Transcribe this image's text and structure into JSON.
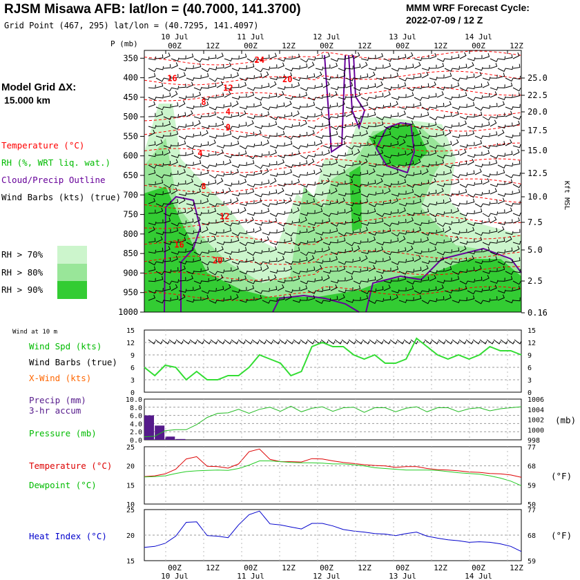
{
  "header": {
    "title": "RJSM Misawa AFB:  lat/lon = (40.7000, 141.3700)",
    "subtitle": "Grid Point (467, 295) lat/lon = (40.7295, 141.4097)",
    "cycle_label": "MMM WRF Forecast Cycle:",
    "cycle_value": "2022-07-09 / 12  Z"
  },
  "legend": {
    "grid_label": "Model Grid ΔX:",
    "grid_value": "15.000 km",
    "temperature": "Temperature (°C)",
    "rh": "RH (%, WRT liq. wat.)",
    "cloud": "Cloud/Precip Outline",
    "wind": "Wind Barbs (kts) (true)",
    "rh70": "RH > 70%",
    "rh80": "RH > 80%",
    "rh90": "RH > 90%",
    "wind10m": "Wind at 10 m",
    "wind_spd": "Wind Spd (kts)",
    "wind_barbs": "Wind Barbs (true)",
    "x_wind": "X-Wind (kts)",
    "precip": "Precip (mm)",
    "precip2": "3-hr accum",
    "pressure": "Pressure (mb)",
    "temp2": "Temperature (°C)",
    "dewpoint": "Dewpoint (°C)",
    "heat_index": "Heat Index (°C)",
    "kft": "Kft MSL",
    "mb": "(mb)",
    "degF": "(°F)",
    "degF2": "(°F)",
    "p_axis": "P (mb)"
  },
  "colors": {
    "temperature": "#ff0000",
    "rh": "#00cc00",
    "cloud": "#660099",
    "rh70": "#ccf5cc",
    "rh80": "#99e699",
    "rh90": "#33cc33",
    "heat_index": "#0000cc",
    "precip_bar": "#551a8b"
  },
  "chart_data": [
    {
      "type": "heatmap",
      "name": "cross-section",
      "time_top_labels": [
        "00Z",
        "12Z",
        "00Z",
        "12Z",
        "00Z",
        "12Z",
        "00Z",
        "12Z",
        "00Z",
        "12Z"
      ],
      "date_top_labels": [
        "10 Jul",
        "11 Jul",
        "12 Jul",
        "13 Jul",
        "14 Jul"
      ],
      "pressure_levels": [
        350,
        400,
        450,
        500,
        550,
        600,
        650,
        700,
        750,
        800,
        850,
        900,
        950,
        1000
      ],
      "height_ticks": [
        "25.0",
        "22.5",
        "20.0",
        "17.5",
        "15.0",
        "12.5",
        "10.0",
        "7.5",
        "5.0",
        "2.5",
        "0.16"
      ],
      "temp_labels": [
        {
          "t": "24",
          "hour": 33,
          "p": 355
        },
        {
          "t": "20",
          "hour": 41,
          "p": 404
        },
        {
          "t": "16",
          "hour": 8,
          "p": 402
        },
        {
          "t": "12",
          "hour": 24,
          "p": 426
        },
        {
          "t": "8",
          "hour": 17,
          "p": 463
        },
        {
          "t": "4",
          "hour": 24,
          "p": 487
        },
        {
          "t": "0",
          "hour": 24,
          "p": 527
        },
        {
          "t": "4",
          "hour": 16,
          "p": 593
        },
        {
          "t": "8",
          "hour": 17,
          "p": 678
        },
        {
          "t": "12",
          "hour": 23,
          "p": 755
        },
        {
          "t": "16",
          "hour": 10,
          "p": 828
        },
        {
          "t": "20",
          "hour": 21,
          "p": 868
        }
      ]
    },
    {
      "type": "line",
      "name": "wind",
      "x_hours": [
        0,
        3,
        6,
        9,
        12,
        15,
        18,
        21,
        24,
        27,
        30,
        33,
        36,
        39,
        42,
        45,
        48,
        51,
        54,
        57,
        60,
        63,
        66,
        69,
        72,
        75,
        78,
        81,
        84,
        87,
        90,
        93,
        96,
        99,
        102,
        105,
        108
      ],
      "series": [
        {
          "name": "Wind Spd (kts)",
          "values": [
            6,
            4,
            6.5,
            6,
            3,
            5,
            3,
            3,
            4,
            4,
            6,
            9,
            8,
            7,
            4,
            5,
            11,
            12,
            11,
            11,
            9,
            8,
            9,
            7,
            7,
            8,
            13,
            11,
            9,
            8,
            9,
            8,
            9,
            11,
            10,
            10,
            9
          ]
        }
      ],
      "ylim": [
        0,
        15
      ],
      "yticks": [
        "15",
        "12",
        "9",
        "6",
        "3",
        "0"
      ]
    },
    {
      "type": "bar",
      "name": "precip",
      "x_hours": [
        0,
        3,
        6,
        9
      ],
      "values": [
        6.0,
        3.5,
        0.8,
        0.2
      ],
      "ylim": [
        0,
        10
      ],
      "yticks": [
        "10.0",
        "8.0",
        "6.0",
        "4.0",
        "2.0",
        "0.0"
      ]
    },
    {
      "type": "line",
      "name": "pressure",
      "x_hours": [
        0,
        3,
        6,
        9,
        12,
        15,
        18,
        21,
        24,
        27,
        30,
        33,
        36,
        39,
        42,
        45,
        48,
        51,
        54,
        57,
        60,
        63,
        66,
        69,
        72,
        75,
        78,
        81,
        84,
        87,
        90,
        93,
        96,
        99,
        102,
        105,
        108
      ],
      "series": [
        {
          "name": "Pressure (mb)",
          "values": [
            998.6,
            998.7,
            999.8,
            1000.0,
            1000.0,
            1001.0,
            1002.4,
            1003.2,
            1003.3,
            1004.0,
            1003.2,
            1004.0,
            1004.4,
            1003.6,
            1004.6,
            1003.5,
            1004.2,
            1004.5,
            1003.6,
            1004.3,
            1004.4,
            1003.4,
            1004.3,
            1004.3,
            1003.5,
            1004.2,
            1004.5,
            1003.5,
            1004.3,
            1004.3,
            1003.5,
            1004.1,
            1004.3,
            1003.7,
            1004.1,
            1004.3,
            1004.5
          ]
        }
      ],
      "ylim": [
        998,
        1006
      ],
      "yticks": [
        "1006",
        "1004",
        "1002",
        "1000",
        "998"
      ]
    },
    {
      "type": "line",
      "name": "temperature",
      "x_hours": [
        0,
        3,
        6,
        9,
        12,
        15,
        18,
        21,
        24,
        27,
        30,
        33,
        36,
        39,
        42,
        45,
        48,
        51,
        54,
        57,
        60,
        63,
        66,
        69,
        72,
        75,
        78,
        81,
        84,
        87,
        90,
        93,
        96,
        99,
        102,
        105,
        108
      ],
      "series": [
        {
          "name": "Temperature (°C)",
          "values": [
            17.2,
            17.4,
            17.9,
            19.1,
            21.8,
            22.4,
            19.9,
            19.8,
            19.4,
            20.5,
            23.7,
            24.4,
            21.7,
            21.1,
            21.1,
            21.0,
            21.9,
            21.8,
            21.3,
            20.9,
            20.6,
            20.3,
            20.1,
            20.0,
            19.6,
            19.8,
            19.8,
            19.3,
            19.0,
            18.9,
            18.7,
            18.4,
            18.3,
            18.0,
            17.9,
            17.6,
            17.0
          ]
        },
        {
          "name": "Dewpoint (°C)",
          "values": [
            17.1,
            17.2,
            17.4,
            18.0,
            18.5,
            18.7,
            18.8,
            18.9,
            18.8,
            19.3,
            20.2,
            21.3,
            21.3,
            21.1,
            20.9,
            20.8,
            20.8,
            20.7,
            20.5,
            20.5,
            20.3,
            20.0,
            19.5,
            19.3,
            19.1,
            18.9,
            18.9,
            18.9,
            18.8,
            18.5,
            18.2,
            18.0,
            17.8,
            17.4,
            16.8,
            16.0,
            14.8
          ]
        }
      ],
      "ylim": [
        10,
        25
      ],
      "yticks": [
        "25",
        "20",
        "15",
        "10"
      ],
      "yticks_right": [
        "77",
        "68",
        "59",
        "50"
      ]
    },
    {
      "type": "line",
      "name": "heat-index",
      "x_hours": [
        0,
        3,
        6,
        9,
        12,
        15,
        18,
        21,
        24,
        27,
        30,
        33,
        36,
        39,
        42,
        45,
        48,
        51,
        54,
        57,
        60,
        63,
        66,
        69,
        72,
        75,
        78,
        81,
        84,
        87,
        90,
        93,
        96,
        99,
        102,
        105,
        108
      ],
      "series": [
        {
          "name": "Heat Index (°C)",
          "values": [
            17.6,
            17.8,
            18.4,
            19.8,
            22.5,
            22.6,
            19.9,
            19.8,
            19.5,
            22.0,
            24.0,
            24.7,
            22.2,
            22.0,
            21.6,
            21.2,
            22.3,
            22.3,
            21.8,
            21.1,
            20.8,
            20.6,
            20.3,
            20.2,
            19.9,
            20.3,
            20.6,
            19.8,
            19.4,
            19.1,
            18.9,
            18.6,
            18.7,
            18.6,
            18.3,
            17.8,
            16.8
          ]
        }
      ],
      "ylim": [
        15,
        25
      ],
      "yticks": [
        "25",
        "20",
        "15"
      ],
      "yticks_right": [
        "77",
        "68",
        "59"
      ]
    }
  ],
  "bottom_axis": {
    "time_labels": [
      "00Z",
      "12Z",
      "00Z",
      "12Z",
      "00Z",
      "12Z",
      "00Z",
      "12Z",
      "00Z",
      "12Z"
    ],
    "date_labels": [
      "10 Jul",
      "11 Jul",
      "12 Jul",
      "13 Jul",
      "14 Jul"
    ]
  }
}
